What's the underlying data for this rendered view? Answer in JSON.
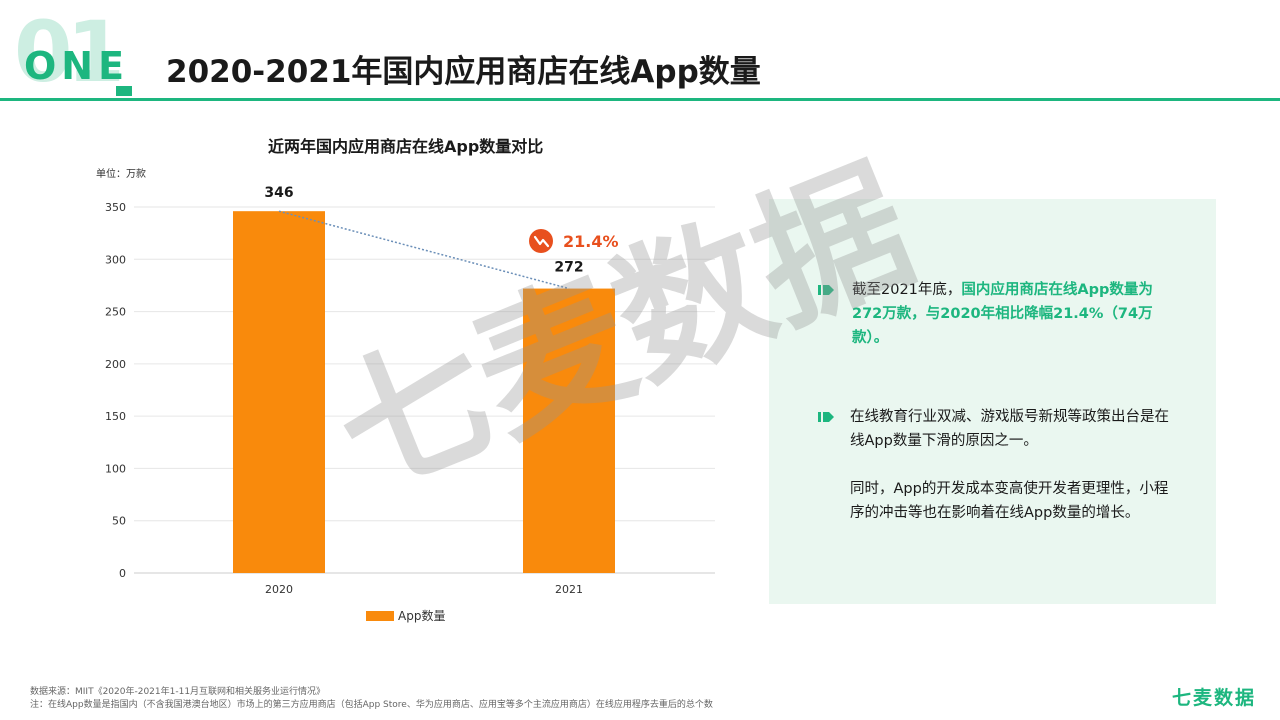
{
  "header": {
    "number": "01",
    "section_label": "ONE",
    "title": "2020-2021年国内应用商店在线App数量"
  },
  "colors": {
    "accent": "#1db67f",
    "bar": "#f98a0c",
    "panel_bg": "#eaf7f0",
    "change_badge": "#e8501e"
  },
  "chart_data": {
    "type": "bar",
    "title": "近两年国内应用商店在线App数量对比",
    "unit_label": "单位：万款",
    "categories": [
      "2020",
      "2021"
    ],
    "series": [
      {
        "name": "App数量",
        "values": [
          346,
          272
        ]
      }
    ],
    "data_labels": [
      "346",
      "272"
    ],
    "yticks": [
      0,
      50,
      100,
      150,
      200,
      250,
      300,
      350
    ],
    "ylim": [
      0,
      350
    ],
    "grid": true,
    "legend": "bottom",
    "annotation": {
      "text": "21.4%",
      "icon": "down-trend-icon"
    }
  },
  "panel": {
    "item1": {
      "prefix": "截至2021年底，",
      "highlight": "国内应用商店在线App数量为272万款，与2020年相比降幅21.4%（74万款）。"
    },
    "item2": {
      "para1": "在线教育行业双减、游戏版号新规等政策出台是在线App数量下滑的原因之一。",
      "para2": "同时，App的开发成本变高使开发者更理性，小程序的冲击等也在影响着在线App数量的增长。"
    }
  },
  "footer": {
    "source": "数据来源：MIIT《2020年-2021年1-11月互联网和相关服务业运行情况》",
    "note": "注：在线App数量是指国内（不含我国港澳台地区）市场上的第三方应用商店（包括App Store、华为应用商店、应用宝等多个主流应用商店）在线应用程序去重后的总个数",
    "logo": "七麦数据"
  },
  "watermark": "七麦数据"
}
